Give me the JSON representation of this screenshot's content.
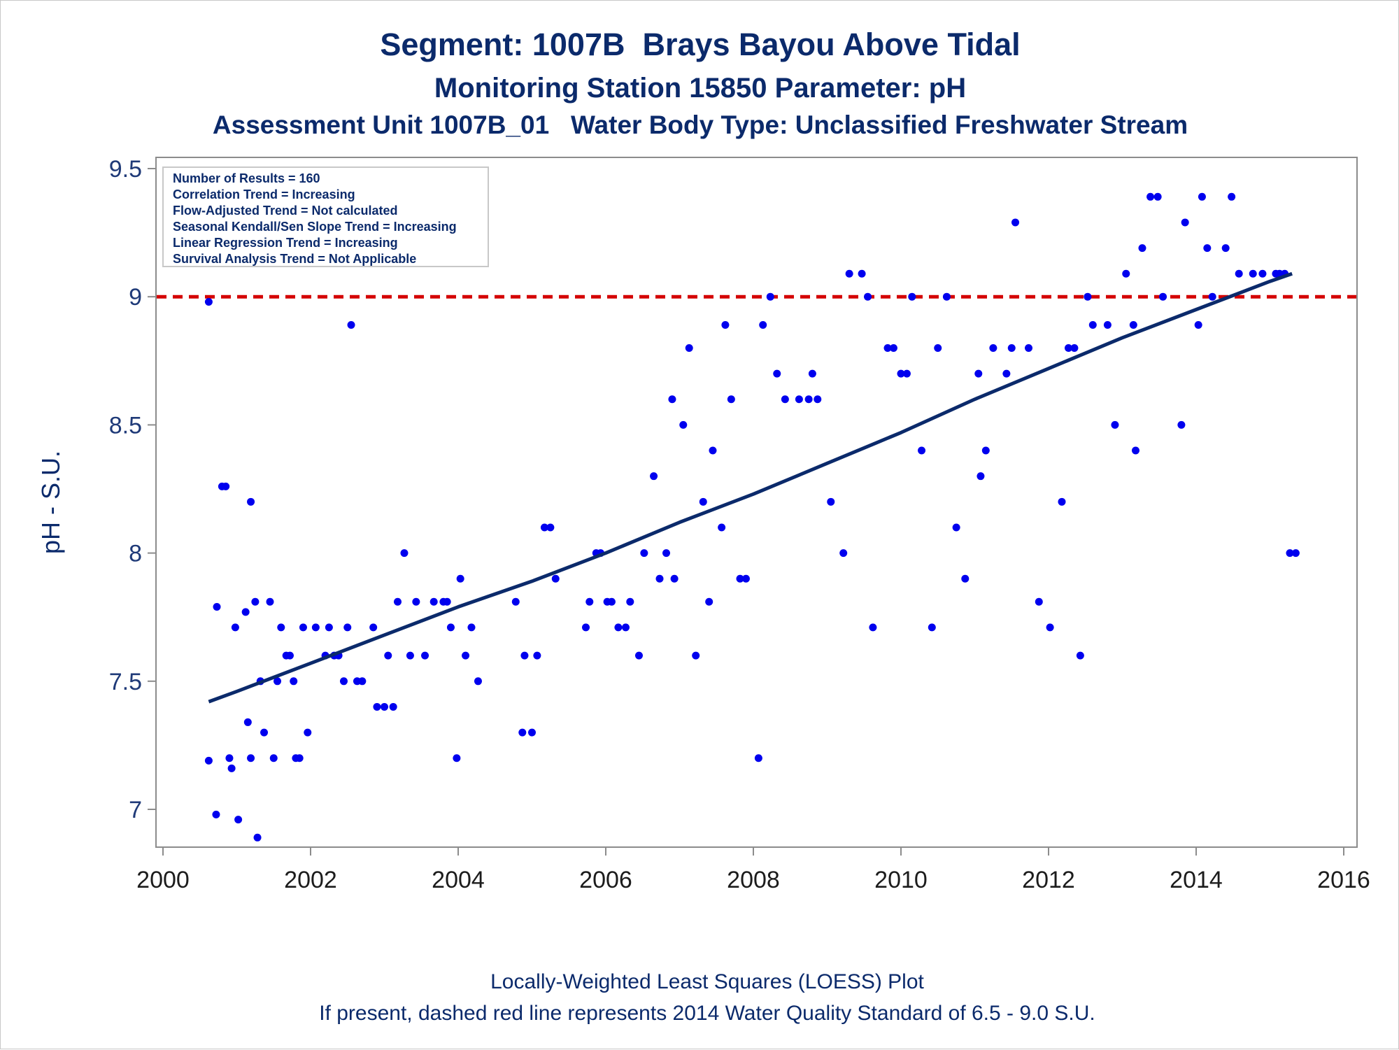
{
  "chart_data": {
    "type": "scatter",
    "title": "Segment: 1007B  Brays Bayou Above Tidal",
    "subtitle": "Monitoring Station 15850 Parameter: pH",
    "subtitle2": "Assessment Unit 1007B_01   Water Body Type: Unclassified Freshwater Stream",
    "ylabel": "pH - S.U.",
    "xlabel": "",
    "xlim": [
      2000,
      2016
    ],
    "ylim": [
      6.87,
      9.55
    ],
    "x_ticks": [
      "2000",
      "2002",
      "2004",
      "2006",
      "2008",
      "2010",
      "2012",
      "2014",
      "2016"
    ],
    "y_ticks": [
      "7",
      "7.5",
      "8",
      "8.5",
      "9",
      "9.5"
    ],
    "grid": false,
    "footnote1": "Locally-Weighted Least Squares (LOESS) Plot",
    "footnote2": "If present, dashed red line represents 2014 Water Quality Standard of 6.5 - 9.0 S.U.",
    "stats": [
      "Number of Results = 160",
      "Correlation Trend = Increasing",
      "Flow-Adjusted Trend = Not calculated",
      "Seasonal Kendall/Sen Slope Trend = Increasing",
      "Linear Regression Trend = Increasing",
      "Survival Analysis Trend = Not Applicable"
    ],
    "legend_placement": "top-left",
    "standard_line": 9.0,
    "colors": {
      "points": "#0000ee",
      "trend": "#0b2a6b",
      "standard": "#d40000",
      "text": "#0b2a6b"
    },
    "trend": {
      "x": [
        2000.62,
        2001,
        2002,
        2003,
        2004,
        2005,
        2006,
        2007,
        2008,
        2009,
        2010,
        2011,
        2012,
        2013,
        2014,
        2015,
        2015.3
      ],
      "y": [
        7.42,
        7.46,
        7.57,
        7.68,
        7.79,
        7.89,
        8.0,
        8.12,
        8.23,
        8.35,
        8.47,
        8.6,
        8.72,
        8.84,
        8.95,
        9.06,
        9.09
      ]
    },
    "points": {
      "x": [
        2000.62,
        2000.62,
        2000.72,
        2000.73,
        2000.8,
        2000.85,
        2000.9,
        2000.93,
        2000.98,
        2001.02,
        2001.12,
        2001.15,
        2001.19,
        2001.19,
        2001.25,
        2001.28,
        2001.32,
        2001.37,
        2001.45,
        2001.5,
        2001.55,
        2001.6,
        2001.67,
        2001.72,
        2001.77,
        2001.8,
        2001.85,
        2001.9,
        2001.96,
        2002.07,
        2002.2,
        2002.25,
        2002.32,
        2002.38,
        2002.45,
        2002.5,
        2002.55,
        2002.63,
        2002.7,
        2002.85,
        2002.9,
        2003.0,
        2003.05,
        2003.12,
        2003.18,
        2003.27,
        2003.35,
        2003.43,
        2003.55,
        2003.67,
        2003.8,
        2003.85,
        2003.9,
        2003.98,
        2004.03,
        2004.1,
        2004.18,
        2004.27,
        2004.78,
        2004.87,
        2004.9,
        2005.0,
        2005.07,
        2005.17,
        2005.25,
        2005.32,
        2005.73,
        2005.78,
        2005.87,
        2005.93,
        2006.02,
        2006.08,
        2006.17,
        2006.27,
        2006.33,
        2006.45,
        2006.52,
        2006.65,
        2006.73,
        2006.82,
        2006.9,
        2006.93,
        2007.05,
        2007.13,
        2007.22,
        2007.32,
        2007.4,
        2007.45,
        2007.57,
        2007.62,
        2007.7,
        2007.82,
        2007.9,
        2008.07,
        2008.13,
        2008.23,
        2008.32,
        2008.43,
        2008.62,
        2008.75,
        2008.8,
        2008.87,
        2009.05,
        2009.22,
        2009.3,
        2009.47,
        2009.55,
        2009.62,
        2009.82,
        2009.9,
        2010.0,
        2010.08,
        2010.15,
        2010.28,
        2010.42,
        2010.5,
        2010.62,
        2010.75,
        2010.87,
        2011.05,
        2011.08,
        2011.15,
        2011.25,
        2011.43,
        2011.5,
        2011.55,
        2011.73,
        2011.87,
        2012.02,
        2012.18,
        2012.27,
        2012.35,
        2012.43,
        2012.53,
        2012.6,
        2012.8,
        2012.9,
        2013.05,
        2013.15,
        2013.18,
        2013.27,
        2013.38,
        2013.48,
        2013.55,
        2013.8,
        2013.85,
        2014.03,
        2014.08,
        2014.15,
        2014.22,
        2014.4,
        2014.48,
        2014.58,
        2014.77,
        2014.9,
        2015.08,
        2015.13,
        2015.2,
        2015.27,
        2015.35
      ],
      "y": [
        8.98,
        7.19,
        6.98,
        7.79,
        8.26,
        8.26,
        7.2,
        7.16,
        7.71,
        6.96,
        7.77,
        7.34,
        8.2,
        7.2,
        7.81,
        6.89,
        7.5,
        7.3,
        7.81,
        7.2,
        7.5,
        7.71,
        7.6,
        7.6,
        7.5,
        7.2,
        7.2,
        7.71,
        7.3,
        7.71,
        7.6,
        7.71,
        7.6,
        7.6,
        7.5,
        7.71,
        8.89,
        7.5,
        7.5,
        7.71,
        7.4,
        7.4,
        7.6,
        7.4,
        7.81,
        8.0,
        7.6,
        7.81,
        7.6,
        7.81,
        7.81,
        7.81,
        7.71,
        7.2,
        7.9,
        7.6,
        7.71,
        7.5,
        7.81,
        7.3,
        7.6,
        7.3,
        7.6,
        8.1,
        8.1,
        7.9,
        7.71,
        7.81,
        8.0,
        8.0,
        7.81,
        7.81,
        7.71,
        7.71,
        7.81,
        7.6,
        8.0,
        8.3,
        7.9,
        8.0,
        8.6,
        7.9,
        8.5,
        8.8,
        7.6,
        8.2,
        7.81,
        8.4,
        8.1,
        8.89,
        8.6,
        7.9,
        7.9,
        7.2,
        8.89,
        9.0,
        8.7,
        8.6,
        8.6,
        8.6,
        8.7,
        8.6,
        8.2,
        8.0,
        9.09,
        9.09,
        9.0,
        7.71,
        8.8,
        8.8,
        8.7,
        8.7,
        9.0,
        8.4,
        7.71,
        8.8,
        9.0,
        8.1,
        7.9,
        8.7,
        8.3,
        8.4,
        8.8,
        8.7,
        8.8,
        9.29,
        8.8,
        7.81,
        7.71,
        8.2,
        8.8,
        8.8,
        7.6,
        9.0,
        8.89,
        8.89,
        8.5,
        9.09,
        8.89,
        8.4,
        9.19,
        9.39,
        9.39,
        9.0,
        8.5,
        9.29,
        8.89,
        9.39,
        9.19,
        9.0,
        9.19,
        9.39,
        9.09,
        9.09,
        9.09,
        9.09,
        9.09,
        9.09,
        8.0,
        8.0
      ]
    }
  }
}
